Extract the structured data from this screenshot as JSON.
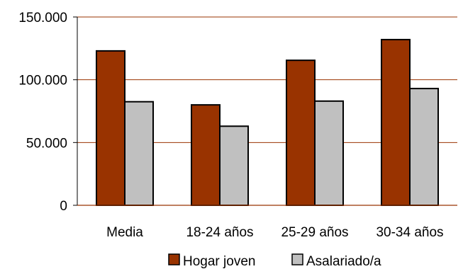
{
  "chart_data": {
    "type": "bar",
    "categories": [
      "Media",
      "18-24 años",
      "25-29 años",
      "30-34 años"
    ],
    "series": [
      {
        "name": "Hogar joven",
        "values": [
          123000,
          80000,
          115500,
          132000
        ],
        "color": "#993300"
      },
      {
        "name": "Asalariado/a",
        "values": [
          82500,
          63000,
          83000,
          93000
        ],
        "color": "#c0c0c0"
      }
    ],
    "ylim": [
      0,
      150000
    ],
    "yticks": [
      {
        "value": 0,
        "label": "0"
      },
      {
        "value": 50000,
        "label": "50.000"
      },
      {
        "value": 100000,
        "label": "100.000"
      },
      {
        "value": 150000,
        "label": "150.000"
      }
    ],
    "grid": true,
    "grid_color": "#993300",
    "legend_position": "bottom",
    "title": "",
    "xlabel": "",
    "ylabel": ""
  }
}
